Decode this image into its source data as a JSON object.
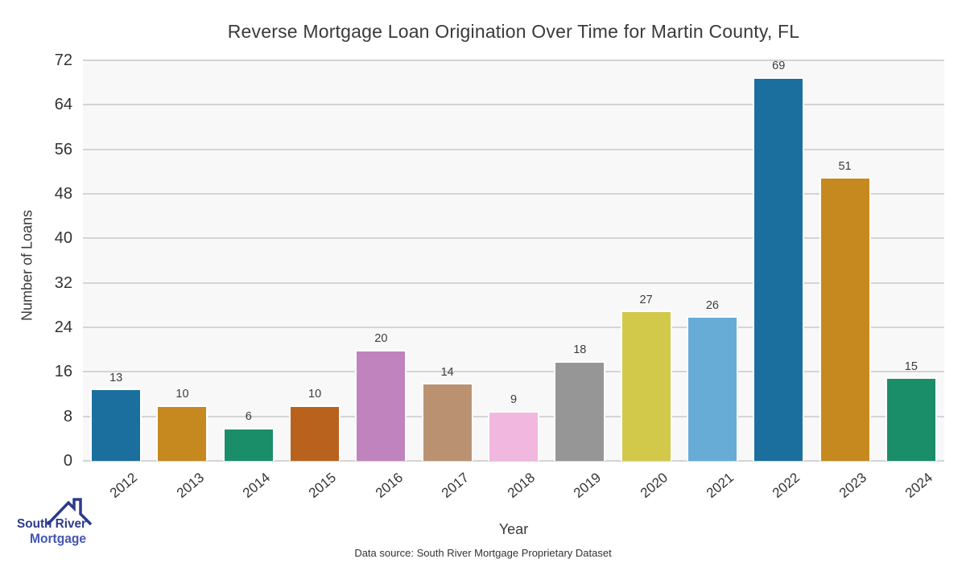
{
  "chart_data": {
    "type": "bar",
    "title": "Reverse Mortgage Loan Origination Over Time for Martin County, FL",
    "xlabel": "Year",
    "ylabel": "Number of Loans",
    "categories": [
      "2012",
      "2013",
      "2014",
      "2015",
      "2016",
      "2017",
      "2018",
      "2019",
      "2020",
      "2021",
      "2022",
      "2023",
      "2024"
    ],
    "values": [
      13,
      10,
      6,
      10,
      20,
      14,
      9,
      18,
      27,
      26,
      69,
      51,
      15
    ],
    "bar_colors": [
      "#1a6f9e",
      "#c6891f",
      "#1a8e69",
      "#b9621d",
      "#c083bd",
      "#bb9271",
      "#f1b7de",
      "#969696",
      "#d2c94b",
      "#67acd7",
      "#1a6f9e",
      "#c6891f",
      "#1a8e69"
    ],
    "ylim": [
      0,
      72
    ],
    "yticks": [
      0,
      8,
      16,
      24,
      32,
      40,
      48,
      56,
      64,
      72
    ],
    "grid": "horizontal",
    "legend": "none",
    "plot_bg": "#f8f8f8",
    "gridline_color": "#d4d4d4",
    "value_labels_shown": true
  },
  "footer": {
    "source_note": "Data source: South River Mortgage Proprietary Dataset"
  },
  "logo": {
    "line1": "South River",
    "line2": "Mortgage",
    "color_primary": "#2c3a8a",
    "color_secondary": "#4456b2"
  }
}
